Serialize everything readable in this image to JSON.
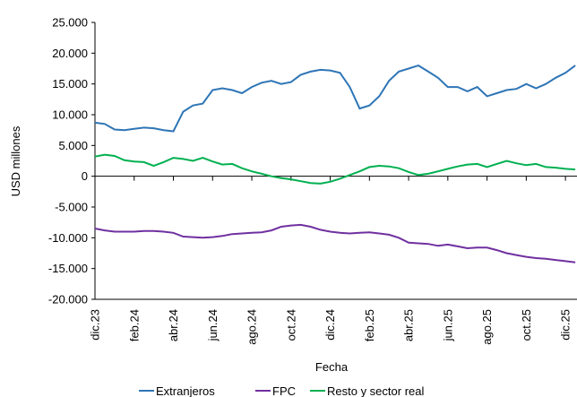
{
  "chart_data": {
    "type": "line",
    "y_label": "USD millones",
    "x_label": "Fecha",
    "categories": [
      "dic.23",
      null,
      null,
      null,
      "feb.24",
      null,
      null,
      null,
      "abr.24",
      null,
      null,
      null,
      "jun.24",
      null,
      null,
      null,
      "ago.24",
      null,
      null,
      null,
      "oct.24",
      null,
      null,
      null,
      "dic.24",
      null,
      null,
      null,
      "feb.25",
      null,
      null,
      null,
      "abr.25",
      null,
      null,
      null,
      "jun.25",
      null,
      null,
      null,
      "ago.25",
      null,
      null,
      null,
      "oct.25",
      null,
      null,
      null,
      "dic.25",
      null
    ],
    "series": [
      {
        "name": "Extranjeros",
        "color": "#2e75b6",
        "values": [
          8700,
          8500,
          7600,
          7500,
          7700,
          7900,
          7800,
          7500,
          7300,
          10500,
          11500,
          11800,
          14000,
          14300,
          14000,
          13500,
          14500,
          15200,
          15500,
          15000,
          15300,
          16500,
          17000,
          17300,
          17200,
          16800,
          14500,
          11000,
          11500,
          13000,
          15500,
          17000,
          17500,
          18000,
          17000,
          16000,
          14500,
          14500,
          13800,
          14500,
          13000,
          13500,
          14000,
          14200,
          15000,
          14300,
          15000,
          16000,
          16800,
          18000
        ]
      },
      {
        "name": "FPC",
        "color": "#7030a0",
        "values": [
          -8500,
          -8800,
          -9000,
          -9000,
          -9000,
          -8900,
          -8900,
          -9000,
          -9200,
          -9800,
          -9900,
          -10000,
          -9900,
          -9700,
          -9400,
          -9300,
          -9200,
          -9100,
          -8800,
          -8200,
          -8000,
          -7900,
          -8200,
          -8700,
          -9000,
          -9200,
          -9300,
          -9200,
          -9100,
          -9300,
          -9500,
          -10000,
          -10800,
          -10900,
          -11000,
          -11300,
          -11100,
          -11400,
          -11700,
          -11600,
          -11600,
          -12000,
          -12500,
          -12800,
          -13100,
          -13300,
          -13400,
          -13600,
          -13800,
          -14000
        ]
      },
      {
        "name": "Resto y sector real",
        "color": "#00b050",
        "values": [
          3200,
          3500,
          3300,
          2600,
          2400,
          2300,
          1700,
          2300,
          3000,
          2800,
          2500,
          3000,
          2400,
          1900,
          2000,
          1300,
          800,
          400,
          0,
          -300,
          -500,
          -800,
          -1100,
          -1200,
          -900,
          -400,
          200,
          800,
          1500,
          1700,
          1600,
          1300,
          700,
          200,
          400,
          800,
          1200,
          1600,
          1900,
          2000,
          1500,
          2000,
          2500,
          2100,
          1800,
          2000,
          1500,
          1400,
          1200,
          1100
        ]
      }
    ],
    "ylim": [
      -20000,
      25000
    ],
    "yticks": [
      {
        "value": -20000,
        "label": "-20.000"
      },
      {
        "value": -15000,
        "label": "-15.000"
      },
      {
        "value": -10000,
        "label": "-10.000"
      },
      {
        "value": -5000,
        "label": "-5.000"
      },
      0,
      {
        "value": 5000,
        "label": "5.000"
      },
      {
        "value": 10000,
        "label": "10.000"
      },
      {
        "value": 15000,
        "label": "15.000"
      },
      {
        "value": 20000,
        "label": "20.000"
      },
      {
        "value": 25000,
        "label": "25.000"
      }
    ]
  }
}
